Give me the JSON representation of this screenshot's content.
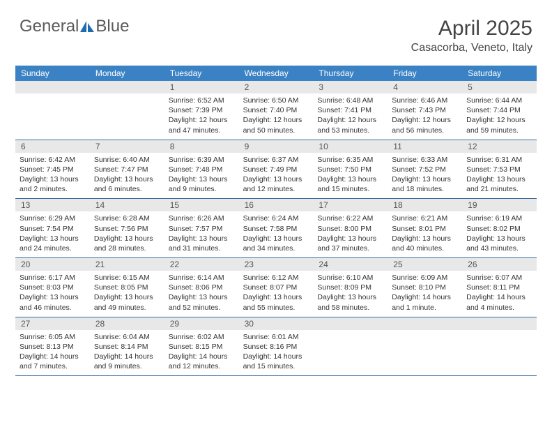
{
  "brand": {
    "text1": "General",
    "text2": "Blue",
    "icon_color": "#1f6bb0",
    "text_color": "#5a5a5a"
  },
  "title": "April 2025",
  "location": "Casacorba, Veneto, Italy",
  "colors": {
    "header_bg": "#3b82c4",
    "header_text": "#ffffff",
    "daynum_bg": "#e8e8e8",
    "daynum_text": "#555555",
    "week_border": "#3b6ea0",
    "body_text": "#333333"
  },
  "day_headers": [
    "Sunday",
    "Monday",
    "Tuesday",
    "Wednesday",
    "Thursday",
    "Friday",
    "Saturday"
  ],
  "weeks": [
    [
      {
        "n": "",
        "sr": "",
        "ss": "",
        "dl": ""
      },
      {
        "n": "",
        "sr": "",
        "ss": "",
        "dl": ""
      },
      {
        "n": "1",
        "sr": "Sunrise: 6:52 AM",
        "ss": "Sunset: 7:39 PM",
        "dl": "Daylight: 12 hours and 47 minutes."
      },
      {
        "n": "2",
        "sr": "Sunrise: 6:50 AM",
        "ss": "Sunset: 7:40 PM",
        "dl": "Daylight: 12 hours and 50 minutes."
      },
      {
        "n": "3",
        "sr": "Sunrise: 6:48 AM",
        "ss": "Sunset: 7:41 PM",
        "dl": "Daylight: 12 hours and 53 minutes."
      },
      {
        "n": "4",
        "sr": "Sunrise: 6:46 AM",
        "ss": "Sunset: 7:43 PM",
        "dl": "Daylight: 12 hours and 56 minutes."
      },
      {
        "n": "5",
        "sr": "Sunrise: 6:44 AM",
        "ss": "Sunset: 7:44 PM",
        "dl": "Daylight: 12 hours and 59 minutes."
      }
    ],
    [
      {
        "n": "6",
        "sr": "Sunrise: 6:42 AM",
        "ss": "Sunset: 7:45 PM",
        "dl": "Daylight: 13 hours and 2 minutes."
      },
      {
        "n": "7",
        "sr": "Sunrise: 6:40 AM",
        "ss": "Sunset: 7:47 PM",
        "dl": "Daylight: 13 hours and 6 minutes."
      },
      {
        "n": "8",
        "sr": "Sunrise: 6:39 AM",
        "ss": "Sunset: 7:48 PM",
        "dl": "Daylight: 13 hours and 9 minutes."
      },
      {
        "n": "9",
        "sr": "Sunrise: 6:37 AM",
        "ss": "Sunset: 7:49 PM",
        "dl": "Daylight: 13 hours and 12 minutes."
      },
      {
        "n": "10",
        "sr": "Sunrise: 6:35 AM",
        "ss": "Sunset: 7:50 PM",
        "dl": "Daylight: 13 hours and 15 minutes."
      },
      {
        "n": "11",
        "sr": "Sunrise: 6:33 AM",
        "ss": "Sunset: 7:52 PM",
        "dl": "Daylight: 13 hours and 18 minutes."
      },
      {
        "n": "12",
        "sr": "Sunrise: 6:31 AM",
        "ss": "Sunset: 7:53 PM",
        "dl": "Daylight: 13 hours and 21 minutes."
      }
    ],
    [
      {
        "n": "13",
        "sr": "Sunrise: 6:29 AM",
        "ss": "Sunset: 7:54 PM",
        "dl": "Daylight: 13 hours and 24 minutes."
      },
      {
        "n": "14",
        "sr": "Sunrise: 6:28 AM",
        "ss": "Sunset: 7:56 PM",
        "dl": "Daylight: 13 hours and 28 minutes."
      },
      {
        "n": "15",
        "sr": "Sunrise: 6:26 AM",
        "ss": "Sunset: 7:57 PM",
        "dl": "Daylight: 13 hours and 31 minutes."
      },
      {
        "n": "16",
        "sr": "Sunrise: 6:24 AM",
        "ss": "Sunset: 7:58 PM",
        "dl": "Daylight: 13 hours and 34 minutes."
      },
      {
        "n": "17",
        "sr": "Sunrise: 6:22 AM",
        "ss": "Sunset: 8:00 PM",
        "dl": "Daylight: 13 hours and 37 minutes."
      },
      {
        "n": "18",
        "sr": "Sunrise: 6:21 AM",
        "ss": "Sunset: 8:01 PM",
        "dl": "Daylight: 13 hours and 40 minutes."
      },
      {
        "n": "19",
        "sr": "Sunrise: 6:19 AM",
        "ss": "Sunset: 8:02 PM",
        "dl": "Daylight: 13 hours and 43 minutes."
      }
    ],
    [
      {
        "n": "20",
        "sr": "Sunrise: 6:17 AM",
        "ss": "Sunset: 8:03 PM",
        "dl": "Daylight: 13 hours and 46 minutes."
      },
      {
        "n": "21",
        "sr": "Sunrise: 6:15 AM",
        "ss": "Sunset: 8:05 PM",
        "dl": "Daylight: 13 hours and 49 minutes."
      },
      {
        "n": "22",
        "sr": "Sunrise: 6:14 AM",
        "ss": "Sunset: 8:06 PM",
        "dl": "Daylight: 13 hours and 52 minutes."
      },
      {
        "n": "23",
        "sr": "Sunrise: 6:12 AM",
        "ss": "Sunset: 8:07 PM",
        "dl": "Daylight: 13 hours and 55 minutes."
      },
      {
        "n": "24",
        "sr": "Sunrise: 6:10 AM",
        "ss": "Sunset: 8:09 PM",
        "dl": "Daylight: 13 hours and 58 minutes."
      },
      {
        "n": "25",
        "sr": "Sunrise: 6:09 AM",
        "ss": "Sunset: 8:10 PM",
        "dl": "Daylight: 14 hours and 1 minute."
      },
      {
        "n": "26",
        "sr": "Sunrise: 6:07 AM",
        "ss": "Sunset: 8:11 PM",
        "dl": "Daylight: 14 hours and 4 minutes."
      }
    ],
    [
      {
        "n": "27",
        "sr": "Sunrise: 6:05 AM",
        "ss": "Sunset: 8:13 PM",
        "dl": "Daylight: 14 hours and 7 minutes."
      },
      {
        "n": "28",
        "sr": "Sunrise: 6:04 AM",
        "ss": "Sunset: 8:14 PM",
        "dl": "Daylight: 14 hours and 9 minutes."
      },
      {
        "n": "29",
        "sr": "Sunrise: 6:02 AM",
        "ss": "Sunset: 8:15 PM",
        "dl": "Daylight: 14 hours and 12 minutes."
      },
      {
        "n": "30",
        "sr": "Sunrise: 6:01 AM",
        "ss": "Sunset: 8:16 PM",
        "dl": "Daylight: 14 hours and 15 minutes."
      },
      {
        "n": "",
        "sr": "",
        "ss": "",
        "dl": ""
      },
      {
        "n": "",
        "sr": "",
        "ss": "",
        "dl": ""
      },
      {
        "n": "",
        "sr": "",
        "ss": "",
        "dl": ""
      }
    ]
  ]
}
